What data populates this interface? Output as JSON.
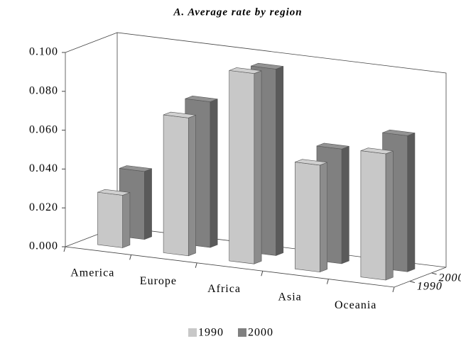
{
  "chart_data": {
    "type": "bar3d",
    "title": "A. Average rate by region",
    "categories": [
      "America",
      "Europe",
      "Africa",
      "Asia",
      "Oceania"
    ],
    "series": [
      {
        "name": "1990",
        "color": "#c8c8c8",
        "values": [
          0.027,
          0.071,
          0.098,
          0.055,
          0.065
        ]
      },
      {
        "name": "2000",
        "color": "#808080",
        "values": [
          0.035,
          0.075,
          0.096,
          0.059,
          0.07
        ]
      }
    ],
    "ylim": [
      0,
      0.1
    ],
    "yticks": [
      {
        "value": 0,
        "label": "0.000"
      },
      {
        "value": 0.02,
        "label": "0.020"
      },
      {
        "value": 0.04,
        "label": "0.040"
      },
      {
        "value": 0.06,
        "label": "0.060"
      },
      {
        "value": 0.08,
        "label": "0.080"
      },
      {
        "value": 0.1,
        "label": "0.100"
      }
    ],
    "grid": false,
    "legend": "bottom"
  }
}
